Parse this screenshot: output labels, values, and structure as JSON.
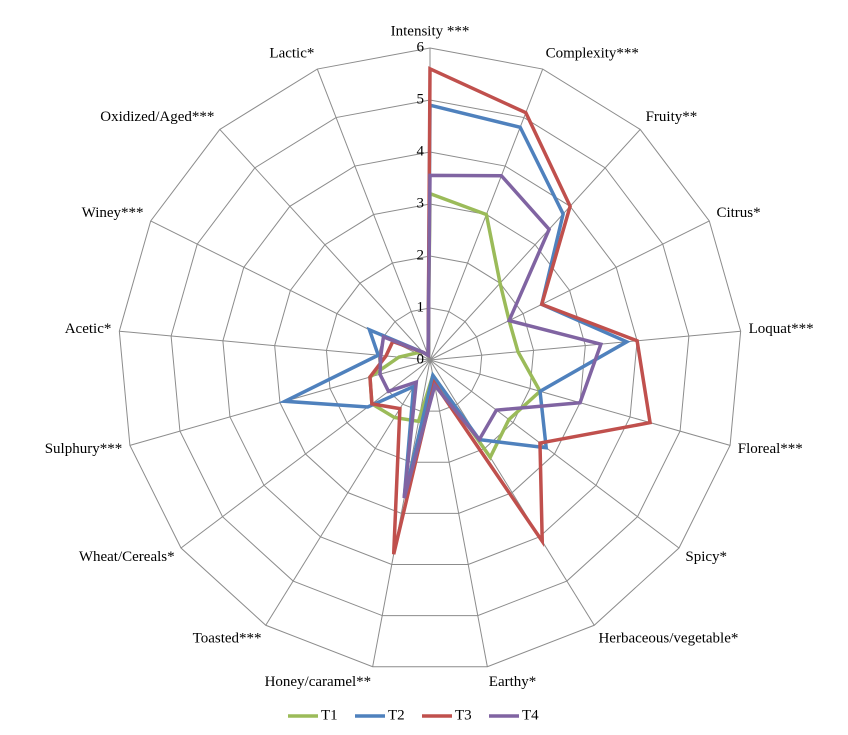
{
  "chart_data": {
    "type": "radar",
    "categories": [
      "Intensity ***",
      "Complexity***",
      "Fruity**",
      "Citrus*",
      "Loquat***",
      "Floreal***",
      "Spicy*",
      "Herbaceous/vegetable*",
      "Earthy*",
      "Honey/caramel**",
      "Toasted***",
      "Wheat/Cereals*",
      "Sulphury***",
      "Acetic*",
      "Winey***",
      "Oxidized/Aged***",
      "Lactic*"
    ],
    "rlim": [
      0,
      6
    ],
    "rticks": [
      0,
      1,
      2,
      3,
      4,
      5,
      6
    ],
    "legend": "bottom",
    "series": [
      {
        "name": "T1",
        "color": "#9bbb59",
        "values": [
          3.2,
          3.0,
          2.0,
          1.7,
          1.7,
          2.2,
          1.9,
          2.2,
          0.3,
          1.2,
          1.3,
          1.4,
          1.2,
          0.6,
          0.3,
          0.2,
          0.1
        ]
      },
      {
        "name": "T2",
        "color": "#4f81bd",
        "values": [
          4.9,
          4.8,
          3.8,
          2.4,
          3.8,
          2.2,
          2.8,
          1.8,
          0.3,
          2.7,
          0.6,
          1.5,
          2.9,
          1.0,
          1.3,
          0.2,
          0.1
        ]
      },
      {
        "name": "T3",
        "color": "#c0504d",
        "values": [
          5.6,
          5.1,
          4.0,
          2.4,
          4.0,
          4.4,
          2.65,
          4.1,
          0.45,
          3.8,
          1.1,
          1.4,
          1.2,
          0.85,
          0.8,
          0.2,
          0.1
        ]
      },
      {
        "name": "T4",
        "color": "#8064a2",
        "values": [
          3.55,
          3.8,
          3.4,
          1.7,
          3.3,
          3.0,
          1.6,
          1.8,
          0.5,
          2.7,
          0.5,
          1.0,
          1.0,
          0.95,
          1.0,
          0.2,
          0.1
        ]
      }
    ]
  }
}
